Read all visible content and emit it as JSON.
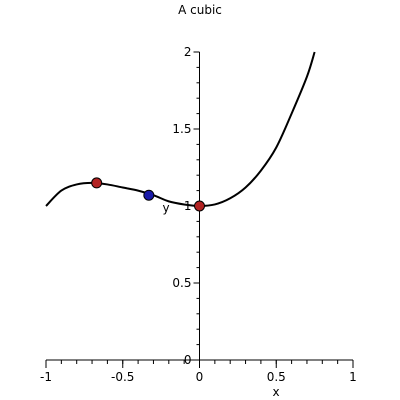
{
  "chart_data": {
    "type": "line",
    "title": "A cubic",
    "xlabel": "x",
    "ylabel": "y",
    "xlim": [
      -1,
      1
    ],
    "ylim": [
      0,
      2
    ],
    "x_ticks": [
      -1,
      -0.5,
      0,
      0.5,
      1
    ],
    "x_tick_labels": [
      "-1",
      "-0.5",
      "0",
      "0.5",
      "1"
    ],
    "y_ticks": [
      0,
      0.5,
      1,
      1.5,
      2
    ],
    "y_tick_labels": [
      "0",
      "0.5",
      "1",
      "1.5",
      "2"
    ],
    "grid": false,
    "legend": "none",
    "series": [
      {
        "color": "#000000",
        "x": [
          -1,
          -0.9,
          -0.8,
          -0.7,
          -0.6,
          -0.5,
          -0.4,
          -0.3,
          -0.2,
          -0.1,
          0,
          0.1,
          0.2,
          0.3,
          0.4,
          0.5,
          0.6,
          0.7,
          0.75
        ],
        "y": [
          1.0,
          1.1,
          1.14,
          1.15,
          1.14,
          1.12,
          1.1,
          1.07,
          1.03,
          1.01,
          1.0,
          1.01,
          1.05,
          1.12,
          1.23,
          1.38,
          1.6,
          1.84,
          2.0
        ]
      }
    ],
    "points": [
      {
        "x": -0.67,
        "y": 1.15,
        "color": "#b22222"
      },
      {
        "x": -0.33,
        "y": 1.07,
        "color": "#1a1aa8"
      },
      {
        "x": 0,
        "y": 1.0,
        "color": "#b22222"
      }
    ]
  }
}
